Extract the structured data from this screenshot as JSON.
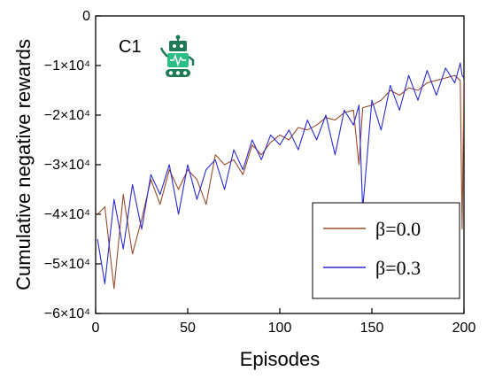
{
  "panel_label": "C1",
  "icons": {
    "robot": "robot-icon"
  },
  "chart_data": {
    "type": "line",
    "xlabel": "Episodes",
    "ylabel": "Cumulative negative rewards",
    "xlim": [
      0,
      200
    ],
    "ylim": [
      -60000,
      0
    ],
    "xticks": [
      0,
      50,
      100,
      150,
      200
    ],
    "yticks": [
      0,
      -10000,
      -20000,
      -30000,
      -40000,
      -50000,
      -60000
    ],
    "xtick_labels": [
      "0",
      "50",
      "100",
      "150",
      "200"
    ],
    "ytick_labels": [
      "0",
      "−1×10⁴",
      "−2×10⁴",
      "−3×10⁴",
      "−4×10⁴",
      "−5×10⁴",
      "−6×10⁴"
    ],
    "legend_position": "bottom-right",
    "grid": false,
    "series": [
      {
        "name": "β=0.0",
        "color": "#9a4b2b",
        "x": [
          1,
          5,
          10,
          15,
          20,
          25,
          30,
          35,
          40,
          45,
          50,
          55,
          60,
          65,
          70,
          75,
          80,
          85,
          90,
          95,
          100,
          105,
          110,
          115,
          120,
          125,
          130,
          135,
          140,
          143,
          145,
          150,
          155,
          160,
          165,
          170,
          175,
          180,
          185,
          190,
          195,
          198,
          199,
          200
        ],
        "y": [
          -40000,
          -38500,
          -55000,
          -36000,
          -48000,
          -41000,
          -33000,
          -38000,
          -31000,
          -35000,
          -31000,
          -33000,
          -38000,
          -28000,
          -30000,
          -29000,
          -32000,
          -26000,
          -28000,
          -25500,
          -24000,
          -25000,
          -22500,
          -23000,
          -22000,
          -20500,
          -21000,
          -19500,
          -19000,
          -30000,
          -18500,
          -18000,
          -17000,
          -15000,
          -16000,
          -14500,
          -15000,
          -13500,
          -13000,
          -12500,
          -12000,
          -13000,
          -43000,
          -13000
        ]
      },
      {
        "name": "β=0.3",
        "color": "#2a2ad6",
        "x": [
          1,
          5,
          10,
          15,
          20,
          25,
          30,
          35,
          40,
          45,
          50,
          55,
          60,
          65,
          70,
          75,
          80,
          85,
          90,
          95,
          100,
          105,
          110,
          115,
          120,
          125,
          130,
          135,
          140,
          143,
          145,
          150,
          155,
          160,
          165,
          170,
          175,
          180,
          185,
          190,
          195,
          198,
          199,
          200
        ],
        "y": [
          -45000,
          -54000,
          -37000,
          -47000,
          -34000,
          -43000,
          -32000,
          -36000,
          -30000,
          -40000,
          -30000,
          -37000,
          -31000,
          -29000,
          -35000,
          -27000,
          -31000,
          -25000,
          -29000,
          -24000,
          -26000,
          -23000,
          -27000,
          -21000,
          -25000,
          -20000,
          -28000,
          -19000,
          -22000,
          -18000,
          -39000,
          -17000,
          -23000,
          -14000,
          -19000,
          -12000,
          -17000,
          -11000,
          -16000,
          -10500,
          -13500,
          -9500,
          -12000,
          -12500
        ]
      }
    ]
  }
}
